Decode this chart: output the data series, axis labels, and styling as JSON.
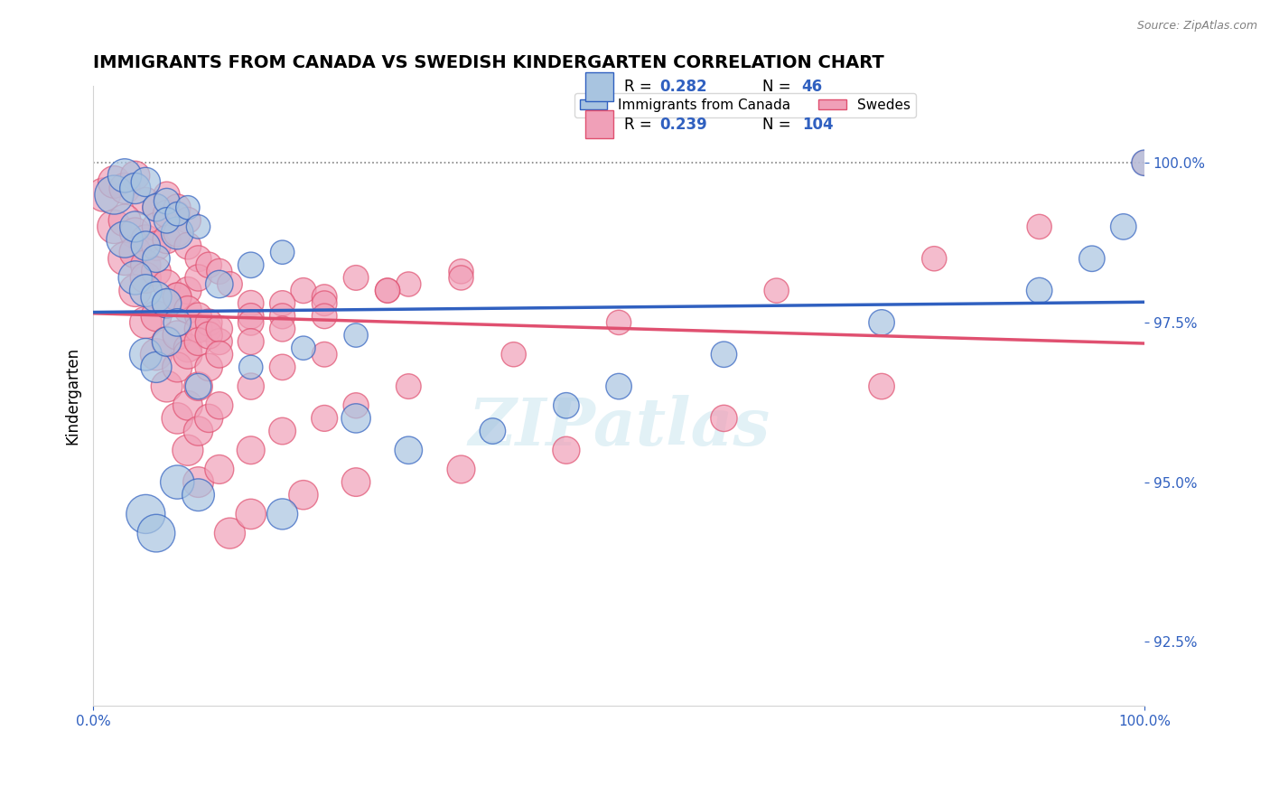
{
  "title": "IMMIGRANTS FROM CANADA VS SWEDISH KINDERGARTEN CORRELATION CHART",
  "source_text": "Source: ZipAtlas.com",
  "xlabel": "",
  "ylabel": "Kindergarten",
  "xlim": [
    0.0,
    100.0
  ],
  "ylim": [
    91.5,
    101.2
  ],
  "yticks": [
    92.5,
    95.0,
    97.5,
    100.0
  ],
  "ytick_labels": [
    "92.5%",
    "95.0%",
    "97.5%",
    "100.0%"
  ],
  "xticks": [
    0.0,
    100.0
  ],
  "xtick_labels": [
    "0.0%",
    "100.0%"
  ],
  "legend_items": [
    "Immigrants from Canada",
    "Swedes"
  ],
  "blue_color": "#a8c4e0",
  "pink_color": "#f0a0b8",
  "blue_line_color": "#3060c0",
  "pink_line_color": "#e05070",
  "R_blue": 0.282,
  "N_blue": 46,
  "R_pink": 0.239,
  "N_pink": 104,
  "watermark": "ZIPatlas",
  "background_color": "#ffffff",
  "dotted_line_y": 100.0,
  "title_fontsize": 14,
  "axis_label_fontsize": 12,
  "tick_fontsize": 11,
  "legend_fontsize": 11,
  "blue_scatter": {
    "x": [
      2,
      3,
      4,
      5,
      6,
      7,
      3,
      8,
      4,
      5,
      6,
      7,
      8,
      9,
      10,
      4,
      5,
      6,
      7,
      12,
      15,
      18,
      5,
      6,
      7,
      8,
      10,
      15,
      20,
      25,
      5,
      6,
      8,
      10,
      18,
      25,
      30,
      38,
      45,
      50,
      60,
      75,
      90,
      95,
      98,
      100
    ],
    "y": [
      99.5,
      99.8,
      99.6,
      99.7,
      99.3,
      99.4,
      98.8,
      98.9,
      99.0,
      98.7,
      98.5,
      99.1,
      99.2,
      99.3,
      99.0,
      98.2,
      98.0,
      97.9,
      97.8,
      98.1,
      98.4,
      98.6,
      97.0,
      96.8,
      97.2,
      97.5,
      96.5,
      96.8,
      97.1,
      97.3,
      94.5,
      94.2,
      95.0,
      94.8,
      94.5,
      96.0,
      95.5,
      95.8,
      96.2,
      96.5,
      97.0,
      97.5,
      98.0,
      98.5,
      99.0,
      100.0
    ],
    "size": [
      80,
      60,
      50,
      45,
      40,
      35,
      70,
      55,
      50,
      45,
      40,
      35,
      30,
      30,
      30,
      60,
      55,
      50,
      45,
      40,
      35,
      30,
      55,
      50,
      45,
      40,
      35,
      30,
      30,
      30,
      80,
      75,
      60,
      55,
      50,
      45,
      40,
      35,
      35,
      35,
      35,
      35,
      35,
      35,
      35,
      35
    ]
  },
  "pink_scatter": {
    "x": [
      1,
      2,
      3,
      4,
      5,
      6,
      7,
      8,
      2,
      3,
      4,
      5,
      6,
      7,
      8,
      9,
      3,
      4,
      5,
      6,
      7,
      8,
      9,
      10,
      4,
      5,
      6,
      7,
      8,
      9,
      10,
      11,
      12,
      13,
      5,
      6,
      7,
      8,
      9,
      10,
      11,
      15,
      20,
      25,
      30,
      35,
      6,
      7,
      8,
      9,
      10,
      11,
      12,
      15,
      18,
      22,
      28,
      35,
      7,
      8,
      9,
      10,
      11,
      12,
      15,
      18,
      22,
      28,
      8,
      9,
      10,
      11,
      12,
      15,
      18,
      22,
      9,
      10,
      11,
      12,
      15,
      18,
      22,
      10,
      12,
      15,
      18,
      22,
      25,
      30,
      40,
      50,
      65,
      80,
      90,
      100,
      13,
      15,
      20,
      25,
      35,
      45,
      60,
      75
    ],
    "y": [
      99.5,
      99.7,
      99.6,
      99.8,
      99.4,
      99.3,
      99.5,
      99.2,
      99.0,
      99.1,
      98.9,
      98.8,
      99.0,
      99.2,
      99.3,
      99.1,
      98.5,
      98.6,
      98.4,
      98.7,
      98.8,
      98.9,
      98.7,
      98.5,
      98.0,
      98.2,
      98.3,
      98.1,
      97.9,
      98.0,
      98.2,
      98.4,
      98.3,
      98.1,
      97.5,
      97.6,
      97.8,
      97.9,
      97.7,
      97.6,
      97.4,
      97.8,
      98.0,
      98.2,
      98.1,
      98.3,
      97.0,
      97.2,
      97.3,
      97.1,
      97.4,
      97.5,
      97.2,
      97.6,
      97.8,
      97.9,
      98.0,
      98.2,
      96.5,
      96.8,
      97.0,
      97.2,
      97.3,
      97.4,
      97.5,
      97.6,
      97.8,
      98.0,
      96.0,
      96.2,
      96.5,
      96.8,
      97.0,
      97.2,
      97.4,
      97.6,
      95.5,
      95.8,
      96.0,
      96.2,
      96.5,
      96.8,
      97.0,
      95.0,
      95.2,
      95.5,
      95.8,
      96.0,
      96.2,
      96.5,
      97.0,
      97.5,
      98.0,
      98.5,
      99.0,
      100.0,
      94.2,
      94.5,
      94.8,
      95.0,
      95.2,
      95.5,
      96.0,
      96.5
    ],
    "size": [
      60,
      55,
      50,
      45,
      40,
      38,
      36,
      34,
      60,
      55,
      50,
      45,
      42,
      40,
      38,
      36,
      58,
      53,
      48,
      45,
      42,
      40,
      38,
      36,
      55,
      50,
      46,
      43,
      41,
      39,
      37,
      35,
      34,
      33,
      54,
      49,
      46,
      43,
      40,
      38,
      36,
      35,
      34,
      33,
      32,
      32,
      53,
      48,
      45,
      42,
      40,
      38,
      36,
      35,
      34,
      33,
      32,
      32,
      52,
      47,
      44,
      41,
      39,
      37,
      35,
      34,
      33,
      32,
      51,
      46,
      43,
      40,
      38,
      36,
      34,
      33,
      50,
      45,
      42,
      39,
      37,
      35,
      33,
      49,
      44,
      41,
      38,
      36,
      34,
      33,
      32,
      32,
      32,
      32,
      32,
      32,
      50,
      48,
      45,
      43,
      41,
      39,
      37,
      35
    ]
  }
}
